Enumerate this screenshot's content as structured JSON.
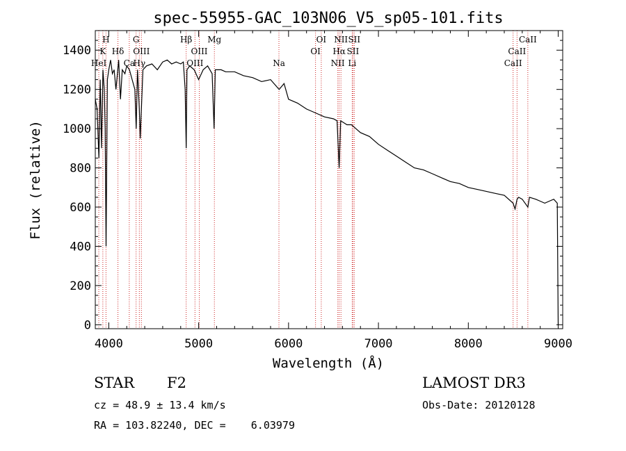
{
  "chart_data": {
    "type": "line",
    "title": "spec-55955-GAC_103N06_V5_sp05-101.fits",
    "xlabel": "Wavelength (Å)",
    "ylabel": "Flux (relative)",
    "xlim": [
      3850,
      9050
    ],
    "ylim": [
      -20,
      1500
    ],
    "xticks": [
      4000,
      5000,
      6000,
      7000,
      8000,
      9000
    ],
    "yticks": [
      0,
      200,
      400,
      600,
      800,
      1000,
      1200,
      1400
    ],
    "grid": false,
    "series": [
      {
        "name": "spectrum",
        "x": [
          3850,
          3870,
          3890,
          3905,
          3920,
          3935,
          3950,
          3960,
          3970,
          3985,
          4000,
          4020,
          4040,
          4060,
          4080,
          4100,
          4110,
          4130,
          4150,
          4180,
          4200,
          4230,
          4260,
          4290,
          4305,
          4320,
          4340,
          4350,
          4380,
          4420,
          4480,
          4540,
          4600,
          4650,
          4700,
          4750,
          4800,
          4830,
          4850,
          4861,
          4870,
          4900,
          4950,
          5000,
          5050,
          5100,
          5150,
          5172,
          5185,
          5250,
          5300,
          5400,
          5500,
          5600,
          5700,
          5800,
          5895,
          5950,
          6000,
          6100,
          6200,
          6300,
          6400,
          6500,
          6540,
          6563,
          6580,
          6650,
          6700,
          6800,
          6900,
          7000,
          7100,
          7200,
          7300,
          7400,
          7500,
          7600,
          7700,
          7800,
          7900,
          8000,
          8100,
          8200,
          8300,
          8400,
          8498,
          8520,
          8542,
          8560,
          8600,
          8662,
          8680,
          8750,
          8800,
          8850,
          8900,
          8950,
          8990,
          9000
        ],
        "y": [
          1150,
          1100,
          850,
          1250,
          900,
          1300,
          1200,
          1000,
          400,
          1250,
          1300,
          1350,
          1280,
          1300,
          1200,
          1300,
          1350,
          1150,
          1300,
          1280,
          1320,
          1300,
          1250,
          1200,
          1000,
          1300,
          1100,
          950,
          1300,
          1320,
          1330,
          1300,
          1340,
          1350,
          1330,
          1340,
          1330,
          1340,
          1200,
          900,
          1300,
          1320,
          1300,
          1250,
          1300,
          1320,
          1280,
          1000,
          1300,
          1300,
          1290,
          1290,
          1270,
          1260,
          1240,
          1250,
          1200,
          1230,
          1150,
          1130,
          1100,
          1080,
          1060,
          1050,
          1040,
          800,
          1040,
          1020,
          1020,
          980,
          960,
          920,
          890,
          860,
          830,
          800,
          790,
          770,
          750,
          730,
          720,
          700,
          690,
          680,
          670,
          660,
          620,
          590,
          640,
          650,
          640,
          600,
          650,
          640,
          630,
          620,
          630,
          640,
          620,
          0
        ]
      }
    ],
    "line_markers": [
      {
        "wl": 3889,
        "label": "HeI",
        "row": 2
      },
      {
        "wl": 3934,
        "label": "K",
        "row": 1
      },
      {
        "wl": 3969,
        "label": "H",
        "row": 0
      },
      {
        "wl": 4102,
        "label": "Hδ",
        "row": 1
      },
      {
        "wl": 4228,
        "label": "Ca",
        "row": 2
      },
      {
        "wl": 4304,
        "label": "G",
        "row": 0
      },
      {
        "wl": 4340,
        "label": "Hγ",
        "row": 2
      },
      {
        "wl": 4363,
        "label": "OIII",
        "row": 1
      },
      {
        "wl": 4861,
        "label": "Hβ",
        "row": 0
      },
      {
        "wl": 4959,
        "label": "OIII",
        "row": 2
      },
      {
        "wl": 5007,
        "label": "OIII",
        "row": 1
      },
      {
        "wl": 5175,
        "label": "Mg",
        "row": 0
      },
      {
        "wl": 5893,
        "label": "Na",
        "row": 2
      },
      {
        "wl": 6300,
        "label": "OI",
        "row": 1
      },
      {
        "wl": 6364,
        "label": "OI",
        "row": 0
      },
      {
        "wl": 6548,
        "label": "NII",
        "row": 2
      },
      {
        "wl": 6563,
        "label": "Hα",
        "row": 1
      },
      {
        "wl": 6583,
        "label": "NII",
        "row": 0
      },
      {
        "wl": 6708,
        "label": "Li",
        "row": 2
      },
      {
        "wl": 6716,
        "label": "SII",
        "row": 1
      },
      {
        "wl": 6731,
        "label": "SII",
        "row": 0
      },
      {
        "wl": 8498,
        "label": "CaII",
        "row": 2
      },
      {
        "wl": 8542,
        "label": "CaII",
        "row": 1
      },
      {
        "wl": 8662,
        "label": "CaII",
        "row": 0
      }
    ]
  },
  "info": {
    "object_type": "STAR",
    "subclass": "F2",
    "cz": "cz = 48.9 ± 13.4 km/s",
    "coords": "RA = 103.82240, DEC =    6.03979",
    "survey": "LAMOST DR3",
    "obs_date": "Obs-Date: 20120128"
  },
  "colors": {
    "marker": "#cc2222",
    "spectrum": "#000000",
    "axes": "#000000"
  }
}
